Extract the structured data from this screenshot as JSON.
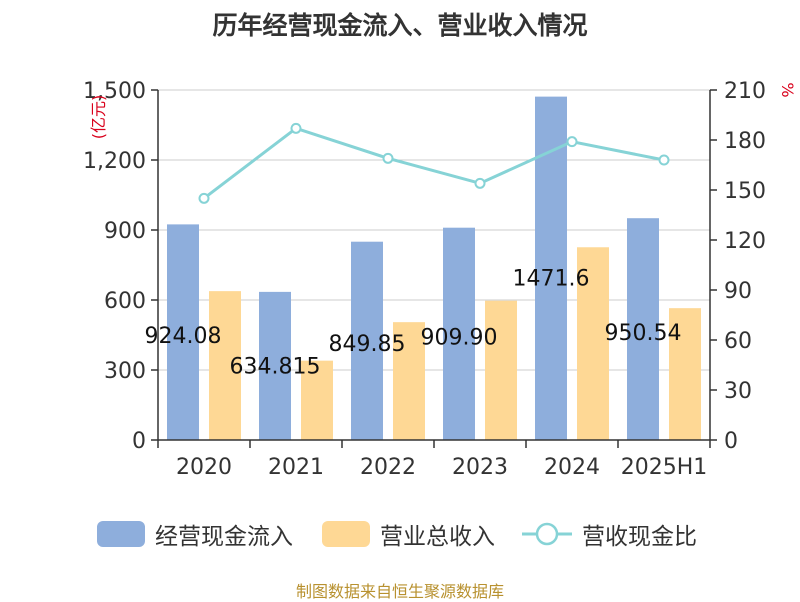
{
  "title": "历年经营现金流入、营业收入情况",
  "source": "制图数据来自恒生聚源数据库",
  "colors": {
    "cash_inflow": "#8eaedc",
    "revenue": "#fed895",
    "ratio": "#86d3d6",
    "unit_red": "#d9001b"
  },
  "legend": [
    {
      "name": "经营现金流入",
      "kind": "bar",
      "color": "#8eaedc"
    },
    {
      "name": "营业总收入",
      "kind": "bar",
      "color": "#fed895"
    },
    {
      "name": "营收现金比",
      "kind": "line",
      "color": "#86d3d6"
    }
  ],
  "chart_data": {
    "type": "bar",
    "title": "历年经营现金流入、营业收入情况",
    "categories": [
      "2020",
      "2021",
      "2022",
      "2023",
      "2024",
      "2025H1"
    ],
    "y_left": {
      "unit": "(亿元)",
      "ylim": [
        0,
        1500
      ],
      "ticks": [
        0,
        300,
        600,
        900,
        1200,
        1500
      ],
      "tick_labels": [
        "0",
        "300",
        "600",
        "900",
        "1,200",
        "1,500"
      ]
    },
    "y_right": {
      "unit": "%",
      "ylim": [
        0,
        210
      ],
      "ticks": [
        0,
        30,
        60,
        90,
        120,
        150,
        180,
        210
      ],
      "tick_labels": [
        "0",
        "30",
        "60",
        "90",
        "120",
        "150",
        "180",
        "210"
      ]
    },
    "series": [
      {
        "name": "经营现金流入",
        "type": "bar",
        "axis": "left",
        "values": [
          924.08,
          634.815,
          849.85,
          909.9,
          1471.62,
          950.54
        ],
        "labels": [
          "924.08",
          "634.815",
          "849.85",
          "909.90",
          "1471.6",
          "950.54"
        ]
      },
      {
        "name": "营业总收入",
        "type": "bar",
        "axis": "left",
        "values": [
          638,
          340,
          505,
          597,
          826,
          565
        ]
      },
      {
        "name": "营收现金比",
        "type": "line",
        "axis": "right",
        "values": [
          145,
          187,
          169,
          154,
          179,
          168
        ]
      }
    ],
    "grid": true,
    "legend_position": "bottom"
  }
}
